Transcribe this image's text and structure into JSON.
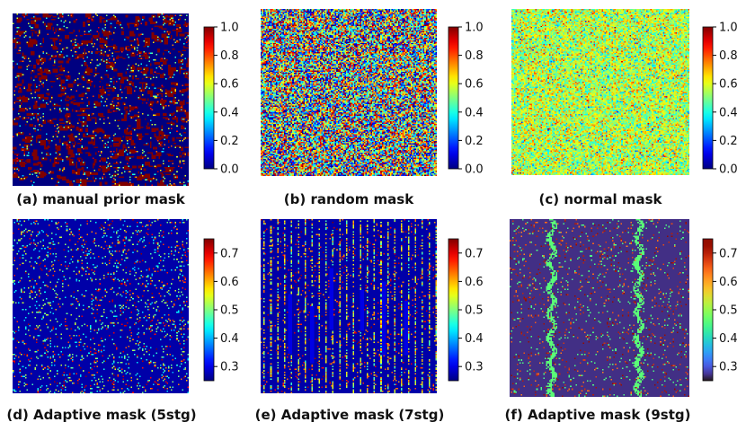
{
  "chart_data": [
    {
      "type": "heatmap",
      "panel_id": "a",
      "title": "(a) manual prior mask",
      "pattern": "manual",
      "colormap": "jet",
      "vmin": 0.0,
      "vmax": 1.0,
      "colorbar_ticks": [
        0.0,
        0.2,
        0.4,
        0.6,
        0.8,
        1.0
      ],
      "colorbar_labels": [
        "0.0",
        "0.2",
        "0.4",
        "0.6",
        "0.8",
        "1.0"
      ],
      "grid_size": 128,
      "description_values": "mostly 0.0 (blue) with clustered 1.0 (red) blocks"
    },
    {
      "type": "heatmap",
      "panel_id": "b",
      "title": "(b) random mask",
      "pattern": "random",
      "colormap": "jet",
      "vmin": 0.0,
      "vmax": 1.0,
      "colorbar_ticks": [
        0.0,
        0.2,
        0.4,
        0.6,
        0.8,
        1.0
      ],
      "colorbar_labels": [
        "0.0",
        "0.2",
        "0.4",
        "0.6",
        "0.8",
        "1.0"
      ],
      "grid_size": 128,
      "description_values": "uniform random values in [0, 1]"
    },
    {
      "type": "heatmap",
      "panel_id": "c",
      "title": "(c) normal mask",
      "pattern": "normal",
      "colormap": "jet",
      "vmin": 0.0,
      "vmax": 1.0,
      "colorbar_ticks": [
        0.0,
        0.2,
        0.4,
        0.6,
        0.8,
        1.0
      ],
      "colorbar_labels": [
        "0.0",
        "0.2",
        "0.4",
        "0.6",
        "0.8",
        "1.0"
      ],
      "grid_size": 128,
      "description_values": "normally distributed around 0.55"
    },
    {
      "type": "heatmap",
      "panel_id": "d",
      "title": "(d) Adaptive mask (5stg)",
      "pattern": "adaptive5",
      "colormap": "jet",
      "vmin": 0.25,
      "vmax": 0.75,
      "colorbar_ticks": [
        0.3,
        0.4,
        0.5,
        0.6,
        0.7
      ],
      "colorbar_labels": [
        "0.3",
        "0.4",
        "0.5",
        "0.6",
        "0.7"
      ],
      "grid_size": 128,
      "description_values": "mostly ~0.27 with sparse high points"
    },
    {
      "type": "heatmap",
      "panel_id": "e",
      "title": "(e) Adaptive mask (7stg)",
      "pattern": "adaptive7",
      "colormap": "jet",
      "vmin": 0.25,
      "vmax": 0.75,
      "colorbar_ticks": [
        0.3,
        0.4,
        0.5,
        0.6,
        0.7
      ],
      "colorbar_labels": [
        "0.3",
        "0.4",
        "0.5",
        "0.6",
        "0.7"
      ],
      "grid_size": 128,
      "description_values": "vertical striped structure, mostly ~0.27"
    },
    {
      "type": "heatmap",
      "panel_id": "f",
      "title": "(f) Adaptive mask (9stg)",
      "pattern": "adaptive9",
      "colormap": "turbo",
      "vmin": 0.25,
      "vmax": 0.75,
      "colorbar_ticks": [
        0.3,
        0.4,
        0.5,
        0.6,
        0.7
      ],
      "colorbar_labels": [
        "0.3",
        "0.4",
        "0.5",
        "0.6",
        "0.7"
      ],
      "grid_size": 128,
      "description_values": "mostly ~0.27 with two vertical bands near 0.45"
    }
  ]
}
